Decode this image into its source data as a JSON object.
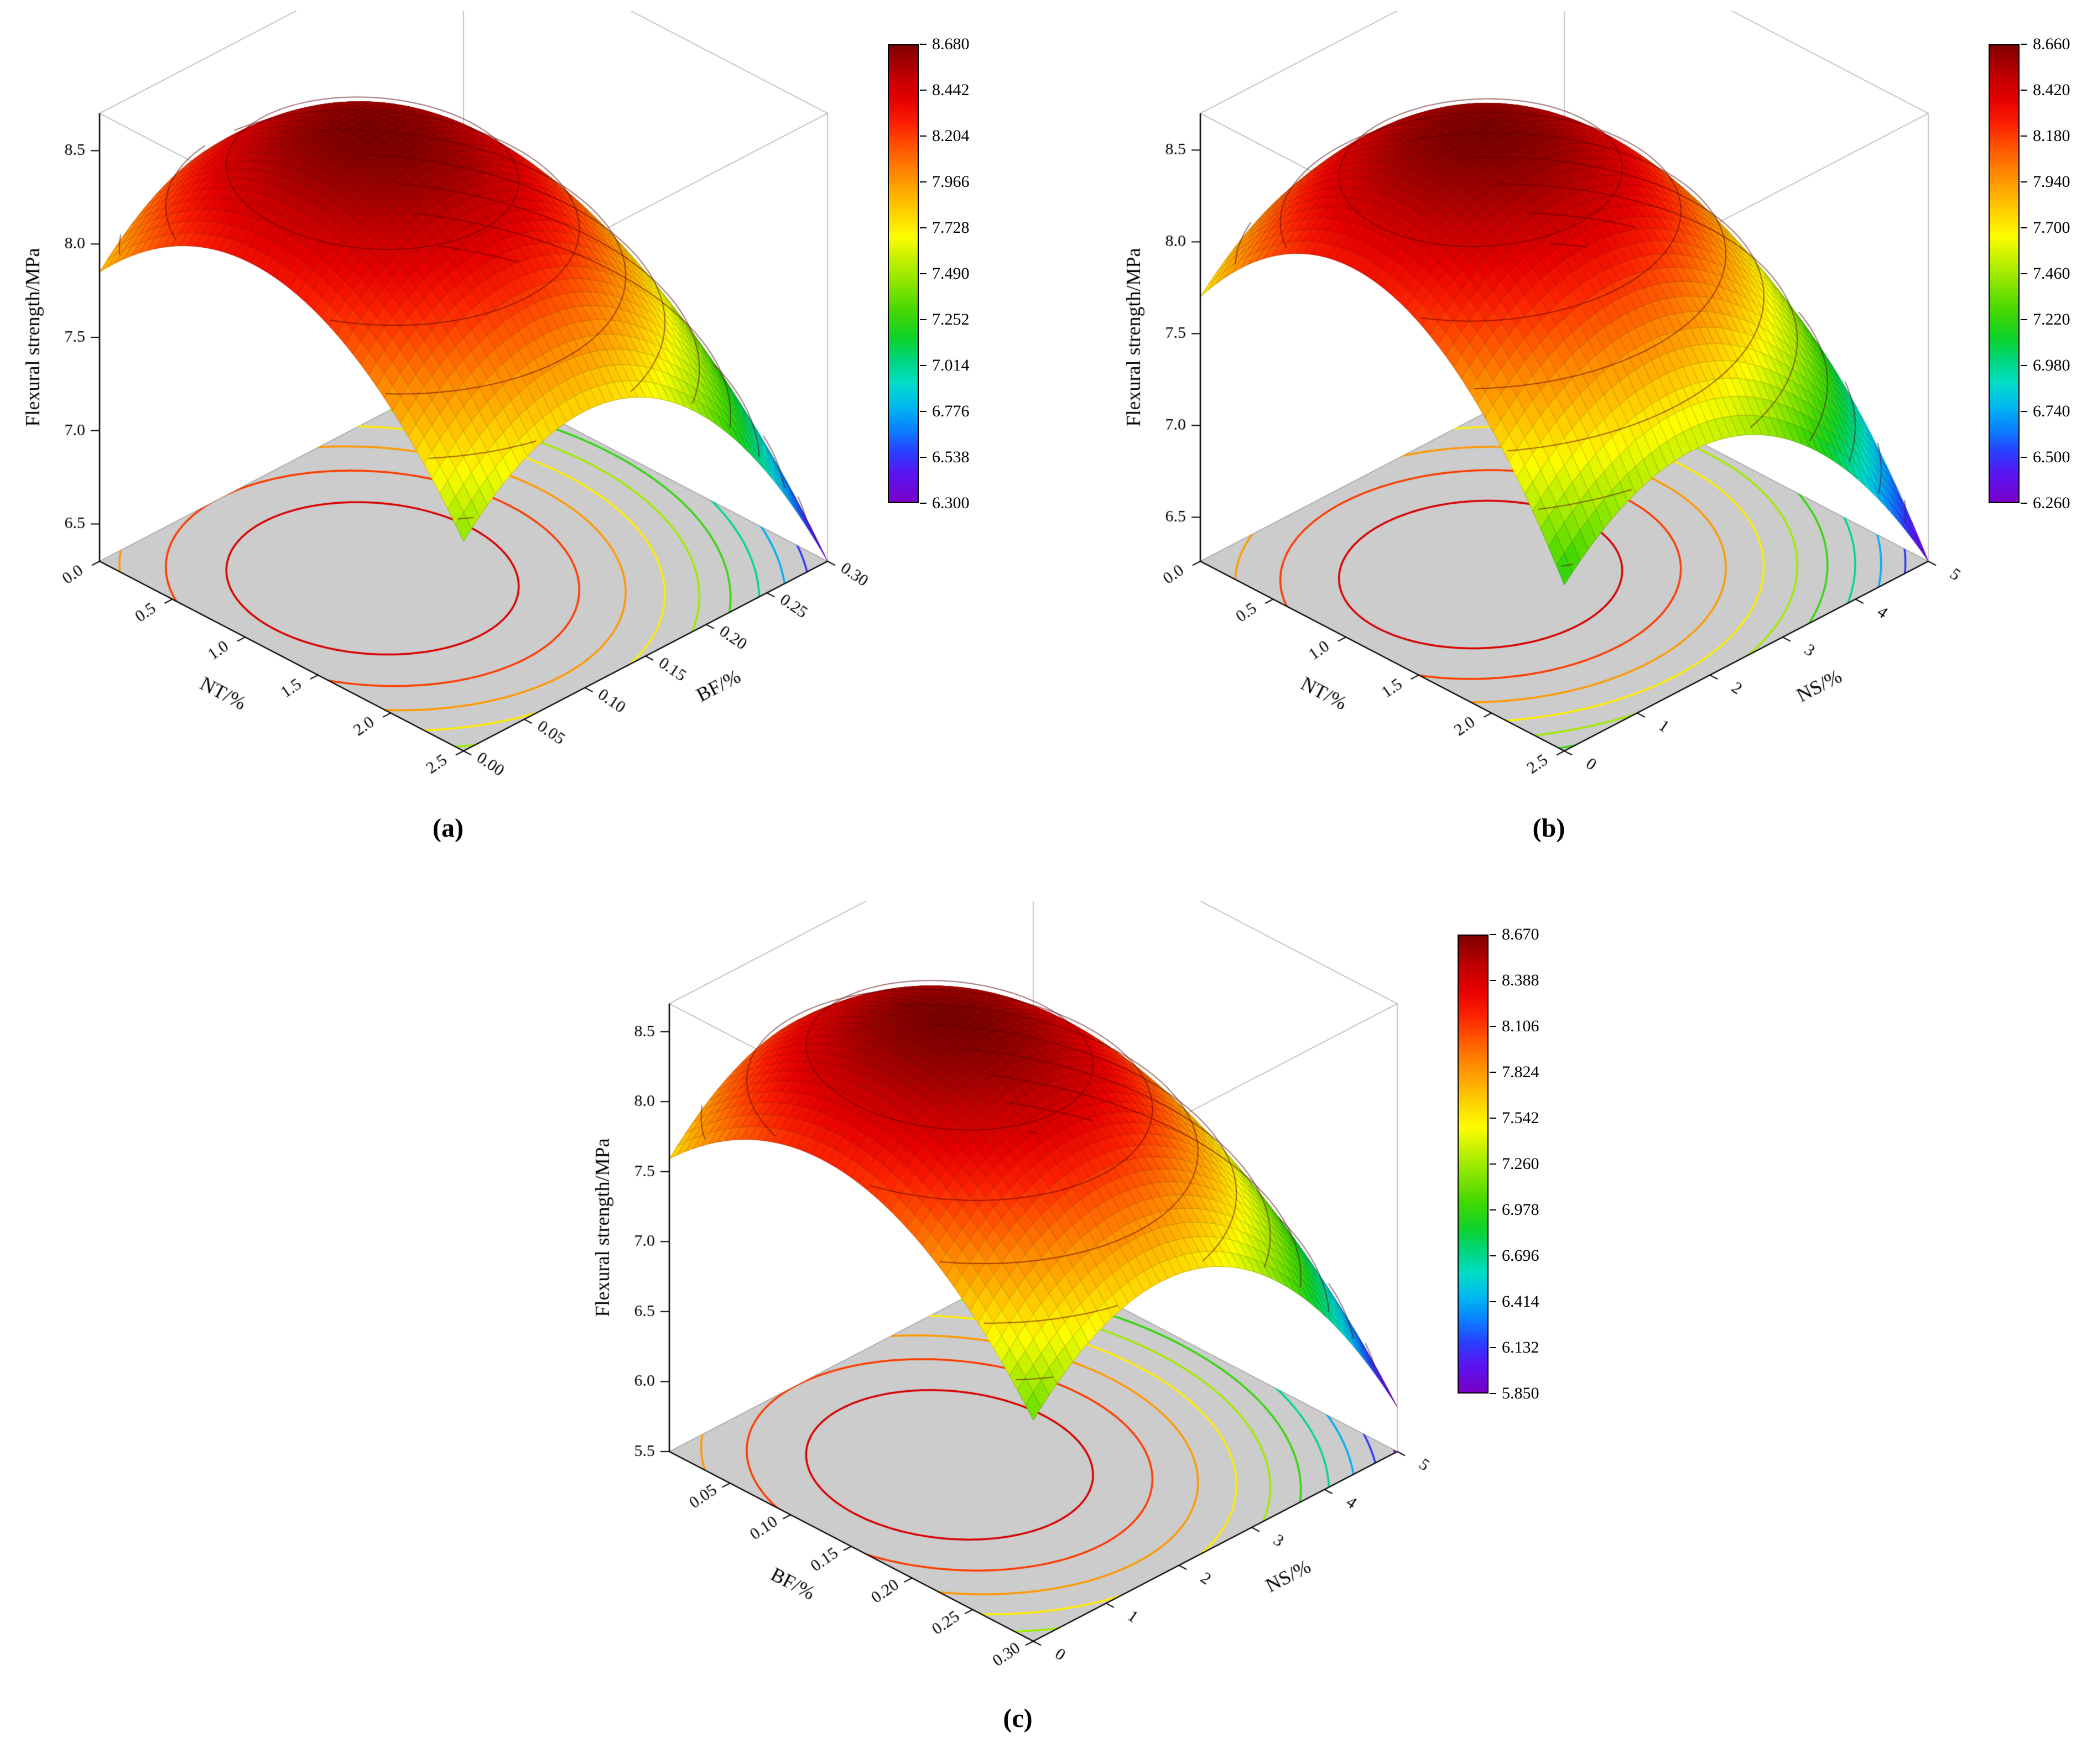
{
  "figure": {
    "background": "#ffffff"
  },
  "colors": {
    "surface_colormap": [
      [
        0.0,
        "#7a00c8"
      ],
      [
        0.06,
        "#5a14f0"
      ],
      [
        0.11,
        "#2840ff"
      ],
      [
        0.16,
        "#0a82ff"
      ],
      [
        0.21,
        "#00b9f0"
      ],
      [
        0.26,
        "#00ddc8"
      ],
      [
        0.31,
        "#00d67d"
      ],
      [
        0.36,
        "#0fd228"
      ],
      [
        0.42,
        "#46d800"
      ],
      [
        0.48,
        "#8ce600"
      ],
      [
        0.54,
        "#cdf200"
      ],
      [
        0.58,
        "#fdfd00"
      ],
      [
        0.63,
        "#ffd500"
      ],
      [
        0.68,
        "#ffaa00"
      ],
      [
        0.73,
        "#ff8000"
      ],
      [
        0.78,
        "#ff5000"
      ],
      [
        0.83,
        "#fb1e00"
      ],
      [
        0.88,
        "#e60000"
      ],
      [
        0.93,
        "#c30000"
      ],
      [
        1.0,
        "#7d0000"
      ]
    ],
    "floor_fill": "#cccccc",
    "floor_edge": "#8f8f8f",
    "frame": "#b4b4b4",
    "axis": "#000000",
    "surface_isoline": "rgba(90,0,0,0.55)"
  },
  "chart_data": [
    {
      "id": "a",
      "type": "surface3d",
      "caption": "(a)",
      "zlabel": "Flexural strength/MPa",
      "xlabel": "NT/%",
      "ylabel": "BF/%",
      "x_range": [
        0,
        2.5
      ],
      "x_ticks": [
        "0.0",
        "0.5",
        "1.0",
        "1.5",
        "2.0",
        "2.5"
      ],
      "y_range": [
        0,
        0.3
      ],
      "y_ticks": [
        "0.00",
        "0.05",
        "0.10",
        "0.15",
        "0.20",
        "0.25",
        "0.30"
      ],
      "z_axis_range": [
        6.3,
        8.7
      ],
      "z_ticks": [
        "6.5",
        "7.0",
        "7.5",
        "8.0",
        "8.5"
      ],
      "color_range": [
        6.3,
        8.68
      ],
      "colorbar_ticks": [
        "8.680",
        "8.442",
        "8.204",
        "7.966",
        "7.728",
        "7.490",
        "7.252",
        "7.014",
        "6.776",
        "6.538",
        "6.300"
      ],
      "surface_model": {
        "peak_z": 8.68,
        "peak_x_frac": 0.42,
        "peak_y_frac": 0.33,
        "curv_x": 2.67,
        "curv_y": 3.3
      }
    },
    {
      "id": "b",
      "type": "surface3d",
      "caption": "(b)",
      "zlabel": "Flexural strength/MPa",
      "xlabel": "NT/%",
      "ylabel": "NS/%",
      "x_range": [
        0,
        2.5
      ],
      "x_ticks": [
        "0.0",
        "0.5",
        "1.0",
        "1.5",
        "2.0",
        "2.5"
      ],
      "y_range": [
        0,
        5
      ],
      "y_ticks": [
        "0",
        "1",
        "2",
        "3",
        "4",
        "5"
      ],
      "z_axis_range": [
        6.26,
        8.7
      ],
      "z_ticks": [
        "6.5",
        "7.0",
        "7.5",
        "8.0",
        "8.5"
      ],
      "color_range": [
        6.26,
        8.66
      ],
      "colorbar_ticks": [
        "8.660",
        "8.420",
        "8.180",
        "7.940",
        "7.700",
        "7.460",
        "7.220",
        "6.980",
        "6.740",
        "6.500",
        "6.260"
      ],
      "surface_model": {
        "peak_z": 8.66,
        "peak_x_frac": 0.42,
        "peak_y_frac": 0.35,
        "curv_x": 3.35,
        "curv_y": 3.01
      }
    },
    {
      "id": "c",
      "type": "surface3d",
      "caption": "(c)",
      "zlabel": "Flexural strength/MPa",
      "xlabel": "BF/%",
      "ylabel": "NS/%",
      "x_range": [
        0,
        0.3
      ],
      "x_ticks": [
        "0.05",
        "0.10",
        "0.15",
        "0.20",
        "0.25",
        "0.30"
      ],
      "y_range": [
        0,
        5
      ],
      "y_ticks": [
        "0",
        "1",
        "2",
        "3",
        "4",
        "5"
      ],
      "z_axis_range": [
        5.5,
        8.7
      ],
      "z_ticks": [
        "5.5",
        "6.0",
        "6.5",
        "7.0",
        "7.5",
        "8.0",
        "8.5"
      ],
      "color_range": [
        5.85,
        8.67
      ],
      "colorbar_ticks": [
        "8.670",
        "8.388",
        "8.106",
        "7.824",
        "7.542",
        "7.260",
        "6.978",
        "6.696",
        "6.414",
        "6.132",
        "5.850"
      ],
      "surface_model": {
        "peak_z": 8.67,
        "peak_x_frac": 0.42,
        "peak_y_frac": 0.35,
        "curv_x": 3.2,
        "curv_y": 4.2
      }
    }
  ]
}
